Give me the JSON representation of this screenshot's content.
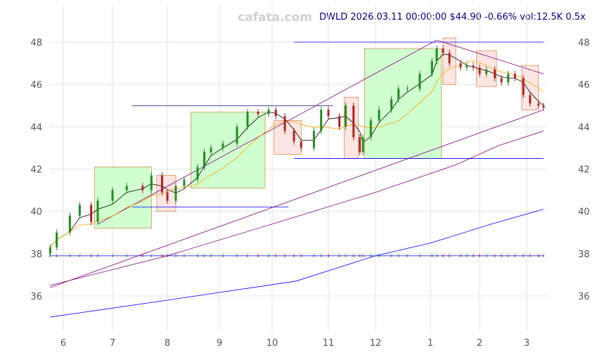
{
  "header": {
    "watermark": "cafata.com",
    "title": "DWLD 2026.03.11 00:00:00 $44.90 -0.66% vol:12.5K 0.5x"
  },
  "chart_data": {
    "type": "candlestick",
    "ylim": [
      35,
      49
    ],
    "yticks": [
      36,
      38,
      40,
      42,
      44,
      46,
      48
    ],
    "grid": true,
    "xticks": [
      {
        "label": "6",
        "date": "2025-06-01"
      },
      {
        "label": "7",
        "date": "2025-07-01"
      },
      {
        "label": "8",
        "date": "2025-08-01"
      },
      {
        "label": "9",
        "date": "2025-09-01"
      },
      {
        "label": "10",
        "date": "2025-10-01"
      },
      {
        "label": "11",
        "date": "2025-11-01"
      },
      {
        "label": "12",
        "date": "2025-12-01"
      },
      {
        "label": "1",
        "date": "2026-01-01"
      },
      {
        "label": "2",
        "date": "2026-02-01"
      },
      {
        "label": "3",
        "date": "2026-03-01"
      }
    ],
    "colors": {
      "up": "#228b22",
      "down": "#b22222",
      "ma_short": "#000000",
      "ma_mid": "#ffa500",
      "trend": "#800080",
      "ma_long": "#0000ff",
      "box_up": "#ccffcc",
      "box_down": "#ffe4e1",
      "box_edge": "#cd853f"
    },
    "closes": [
      [
        "2025-05-24",
        38.3
      ],
      [
        "2025-05-28",
        39.0
      ],
      [
        "2025-06-05",
        39.8
      ],
      [
        "2025-06-11",
        40.3
      ],
      [
        "2025-06-18",
        39.5
      ],
      [
        "2025-06-22",
        40.5
      ],
      [
        "2025-07-01",
        41.0
      ],
      [
        "2025-07-09",
        41.2
      ],
      [
        "2025-07-18",
        41.0
      ],
      [
        "2025-07-23",
        41.7
      ],
      [
        "2025-07-29",
        40.9
      ],
      [
        "2025-08-01",
        40.5
      ],
      [
        "2025-08-06",
        41.2
      ],
      [
        "2025-08-11",
        41.5
      ],
      [
        "2025-08-19",
        42.1
      ],
      [
        "2025-08-23",
        42.8
      ],
      [
        "2025-08-27",
        43.0
      ],
      [
        "2025-09-03",
        43.2
      ],
      [
        "2025-09-11",
        44.0
      ],
      [
        "2025-09-17",
        44.7
      ],
      [
        "2025-09-23",
        44.6
      ],
      [
        "2025-09-29",
        44.8
      ],
      [
        "2025-10-03",
        44.5
      ],
      [
        "2025-10-08",
        43.8
      ],
      [
        "2025-10-13",
        43.3
      ],
      [
        "2025-10-17",
        43.0
      ],
      [
        "2025-10-24",
        43.8
      ],
      [
        "2025-10-28",
        44.8
      ],
      [
        "2025-11-01",
        44.5
      ],
      [
        "2025-11-08",
        44.0
      ],
      [
        "2025-11-12",
        45.0
      ],
      [
        "2025-11-17",
        43.5
      ],
      [
        "2025-11-21",
        42.8
      ],
      [
        "2025-11-23",
        43.5
      ],
      [
        "2025-11-28",
        44.3
      ],
      [
        "2025-12-03",
        44.8
      ],
      [
        "2025-12-10",
        45.3
      ],
      [
        "2025-12-14",
        45.8
      ],
      [
        "2025-12-19",
        45.8
      ],
      [
        "2025-12-26",
        46.5
      ],
      [
        "2026-01-02",
        47.1
      ],
      [
        "2026-01-05",
        47.7
      ],
      [
        "2026-01-09",
        47.5
      ],
      [
        "2026-01-13",
        47.0
      ],
      [
        "2026-01-20",
        46.8
      ],
      [
        "2026-01-24",
        46.9
      ],
      [
        "2026-01-28",
        46.8
      ],
      [
        "2026-02-01",
        46.5
      ],
      [
        "2026-02-05",
        46.7
      ],
      [
        "2026-02-10",
        46.3
      ],
      [
        "2026-02-14",
        46.1
      ],
      [
        "2026-02-18",
        46.5
      ],
      [
        "2026-02-22",
        46.3
      ],
      [
        "2026-02-27",
        45.5
      ],
      [
        "2026-03-03",
        45.1
      ],
      [
        "2026-03-08",
        45.0
      ],
      [
        "2026-03-11",
        44.9
      ]
    ],
    "lines": [
      {
        "role": "trend-lower",
        "color": "#800080",
        "points": [
          [
            "2025-05-24",
            36.4
          ],
          [
            "2026-03-11",
            44.8
          ]
        ]
      },
      {
        "role": "trend-upper",
        "color": "#800080",
        "points": [
          [
            "2025-06-22",
            39.4
          ],
          [
            "2026-01-05",
            48.1
          ],
          [
            "2026-03-11",
            46.5
          ]
        ]
      },
      {
        "role": "ma-long-purple",
        "color": "#800080",
        "points": [
          [
            "2025-05-24",
            36.5
          ],
          [
            "2025-08-01",
            37.9
          ],
          [
            "2025-10-01",
            39.4
          ],
          [
            "2025-12-01",
            40.9
          ],
          [
            "2026-01-17",
            42.2
          ],
          [
            "2026-02-12",
            43.1
          ],
          [
            "2026-03-11",
            43.8
          ]
        ]
      },
      {
        "role": "ma-long-blue",
        "color": "#0000ff",
        "points": [
          [
            "2025-05-24",
            35.0
          ],
          [
            "2025-08-01",
            35.8
          ],
          [
            "2025-10-14",
            36.7
          ],
          [
            "2025-12-01",
            37.9
          ],
          [
            "2026-01-01",
            38.5
          ],
          [
            "2026-02-08",
            39.4
          ],
          [
            "2026-03-11",
            40.1
          ]
        ]
      }
    ],
    "levels": [
      {
        "value": 48.0,
        "from": "2025-10-13",
        "to": "2026-03-11",
        "color": "#0000ff"
      },
      {
        "value": 45.0,
        "from": "2025-07-12",
        "to": "2025-11-04",
        "color": "#000080"
      },
      {
        "value": 42.5,
        "from": "2025-10-13",
        "to": "2026-03-11",
        "color": "#0000ff"
      },
      {
        "value": 40.2,
        "from": "2025-07-12",
        "to": "2025-10-10",
        "color": "#0000ff"
      },
      {
        "value": 37.9,
        "from": "2025-05-24",
        "to": "2026-03-11",
        "color": "#0000ff"
      }
    ],
    "boxes": [
      {
        "from": "2025-06-20",
        "to": "2025-07-23",
        "high": 42.1,
        "low": 39.2,
        "kind": "up"
      },
      {
        "from": "2025-07-26",
        "to": "2025-08-06",
        "high": 41.7,
        "low": 40.0,
        "kind": "down"
      },
      {
        "from": "2025-08-15",
        "to": "2025-09-27",
        "high": 44.7,
        "low": 41.1,
        "kind": "up"
      },
      {
        "from": "2025-10-02",
        "to": "2025-10-17",
        "high": 44.3,
        "low": 42.7,
        "kind": "down"
      },
      {
        "from": "2025-11-11",
        "to": "2025-11-20",
        "high": 45.4,
        "low": 42.5,
        "kind": "down"
      },
      {
        "from": "2025-11-24",
        "to": "2026-01-08",
        "high": 47.7,
        "low": 42.5,
        "kind": "up"
      },
      {
        "from": "2026-01-09",
        "to": "2026-01-17",
        "high": 48.2,
        "low": 46.0,
        "kind": "down"
      },
      {
        "from": "2026-01-30",
        "to": "2026-02-11",
        "high": 47.6,
        "low": 45.9,
        "kind": "down"
      },
      {
        "from": "2026-02-26",
        "to": "2026-03-08",
        "high": 46.9,
        "low": 44.8,
        "kind": "down"
      }
    ]
  }
}
